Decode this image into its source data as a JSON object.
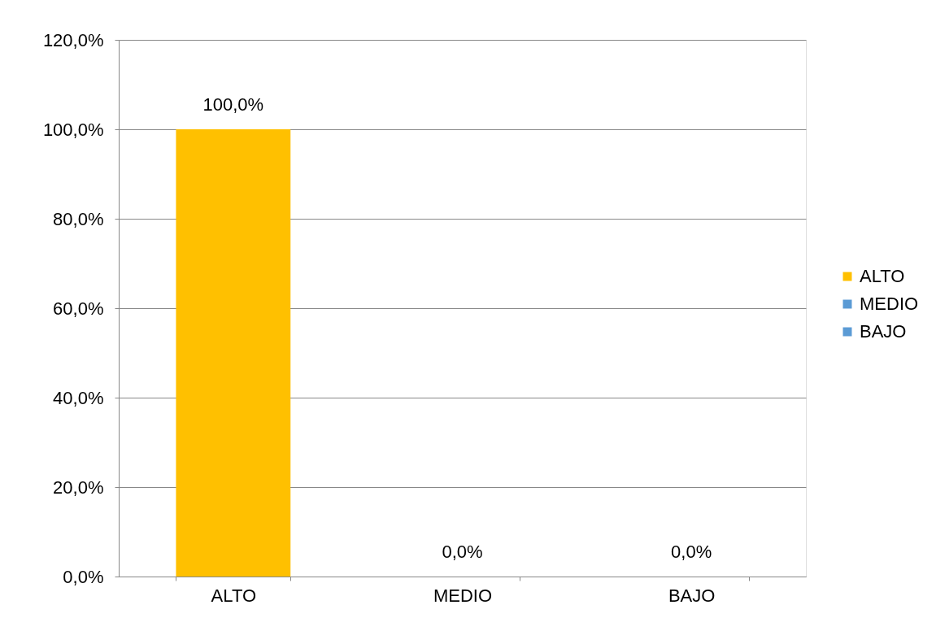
{
  "chart_data": {
    "type": "bar",
    "categories": [
      "ALTO",
      "MEDIO",
      "BAJO"
    ],
    "stacked": true,
    "series": [
      {
        "name": "ALTO",
        "color": "#ffc000",
        "values": [
          100,
          null,
          null
        ],
        "value_labels": [
          "100,0%",
          null,
          null
        ]
      },
      {
        "name": "MEDIO",
        "color": "#5b9bd5",
        "values": [
          null,
          0,
          null
        ],
        "value_labels": [
          null,
          "0,0%",
          null
        ]
      },
      {
        "name": "BAJO",
        "color": "#5b9bd5",
        "values": [
          null,
          null,
          0
        ],
        "value_labels": [
          null,
          null,
          "0,0%"
        ]
      }
    ],
    "ylim": [
      0,
      120
    ],
    "yticks": [
      {
        "value": 0,
        "label": "0,0%"
      },
      {
        "value": 20,
        "label": "20,0%"
      },
      {
        "value": 40,
        "label": "40,0%"
      },
      {
        "value": 60,
        "label": "60,0%"
      },
      {
        "value": 80,
        "label": "80,0%"
      },
      {
        "value": 100,
        "label": "100,0%"
      },
      {
        "value": 120,
        "label": "120,0%"
      }
    ],
    "grid": "y",
    "legend": "right"
  }
}
